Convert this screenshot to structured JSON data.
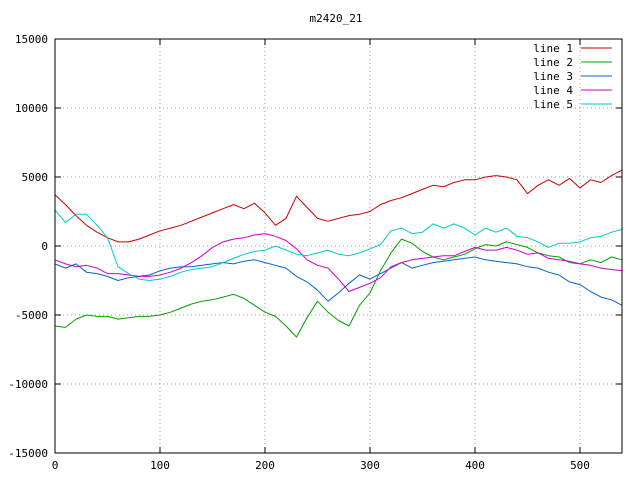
{
  "chart_data": {
    "type": "line",
    "title": "m2420_21",
    "xlabel": "",
    "ylabel": "",
    "xlim": [
      0,
      540
    ],
    "ylim": [
      -15000,
      15000
    ],
    "x_ticks": [
      0,
      100,
      200,
      300,
      400,
      500
    ],
    "y_ticks": [
      -15000,
      -10000,
      -5000,
      0,
      5000,
      10000,
      15000
    ],
    "grid": true,
    "legend_position": "top-right",
    "x": [
      0,
      10,
      20,
      30,
      40,
      50,
      60,
      70,
      80,
      90,
      100,
      110,
      120,
      130,
      140,
      150,
      160,
      170,
      180,
      190,
      200,
      210,
      220,
      230,
      240,
      250,
      260,
      270,
      280,
      290,
      300,
      310,
      320,
      330,
      340,
      350,
      360,
      370,
      380,
      390,
      400,
      410,
      420,
      430,
      440,
      450,
      460,
      470,
      480,
      490,
      500,
      510,
      520,
      530,
      540
    ],
    "series": [
      {
        "name": "line 1",
        "color": "#cc0000",
        "values": [
          3700,
          3000,
          2200,
          1500,
          1000,
          600,
          300,
          300,
          500,
          800,
          1100,
          1300,
          1500,
          1800,
          2100,
          2400,
          2700,
          3000,
          2700,
          3100,
          2400,
          1500,
          2000,
          3600,
          2800,
          2000,
          1800,
          2000,
          2200,
          2300,
          2500,
          3000,
          3300,
          3500,
          3800,
          4100,
          4400,
          4300,
          4600,
          4800,
          4800,
          5000,
          5100,
          5000,
          4800,
          3800,
          4400,
          4800,
          4400,
          4900,
          4200,
          4800,
          4600,
          5100,
          5500
        ]
      },
      {
        "name": "line 2",
        "color": "#00a000",
        "values": [
          -5800,
          -5900,
          -5300,
          -5000,
          -5100,
          -5100,
          -5300,
          -5200,
          -5100,
          -5100,
          -5000,
          -4800,
          -4500,
          -4200,
          -4000,
          -3900,
          -3700,
          -3500,
          -3800,
          -4300,
          -4800,
          -5100,
          -5800,
          -6600,
          -5200,
          -4000,
          -4800,
          -5400,
          -5800,
          -4300,
          -3400,
          -1800,
          -500,
          500,
          200,
          -400,
          -800,
          -1000,
          -800,
          -600,
          -200,
          100,
          0,
          300,
          100,
          -100,
          -500,
          -700,
          -800,
          -1200,
          -1300,
          -1000,
          -1200,
          -800,
          -1000
        ]
      },
      {
        "name": "line 3",
        "color": "#0066cc",
        "values": [
          -1300,
          -1600,
          -1300,
          -1900,
          -2000,
          -2200,
          -2500,
          -2300,
          -2200,
          -2100,
          -1800,
          -1600,
          -1500,
          -1500,
          -1400,
          -1300,
          -1200,
          -1300,
          -1100,
          -1000,
          -1200,
          -1400,
          -1600,
          -2200,
          -2600,
          -3200,
          -4000,
          -3400,
          -2700,
          -2100,
          -2400,
          -2000,
          -1600,
          -1200,
          -1600,
          -1400,
          -1200,
          -1100,
          -1000,
          -900,
          -800,
          -1000,
          -1100,
          -1200,
          -1300,
          -1500,
          -1600,
          -1900,
          -2100,
          -2600,
          -2800,
          -3300,
          -3700,
          -3900,
          -4300
        ]
      },
      {
        "name": "line 4",
        "color": "#cc00cc",
        "values": [
          -1000,
          -1300,
          -1500,
          -1400,
          -1600,
          -2000,
          -2000,
          -2100,
          -2200,
          -2200,
          -2100,
          -1900,
          -1600,
          -1200,
          -700,
          -100,
          300,
          500,
          600,
          800,
          900,
          700,
          400,
          -200,
          -1000,
          -1400,
          -1600,
          -2400,
          -3300,
          -3000,
          -2700,
          -2300,
          -1500,
          -1200,
          -1000,
          -900,
          -800,
          -700,
          -700,
          -400,
          -100,
          -300,
          -300,
          -100,
          -300,
          -600,
          -500,
          -900,
          -1000,
          -1100,
          -1300,
          -1400,
          -1600,
          -1700,
          -1800
        ]
      },
      {
        "name": "line 5",
        "color": "#00cccc",
        "values": [
          2600,
          1700,
          2300,
          2300,
          1500,
          600,
          -1500,
          -2000,
          -2400,
          -2500,
          -2400,
          -2200,
          -1900,
          -1700,
          -1600,
          -1500,
          -1200,
          -900,
          -600,
          -400,
          -300,
          0,
          -300,
          -600,
          -700,
          -500,
          -300,
          -600,
          -700,
          -500,
          -200,
          100,
          1100,
          1300,
          900,
          1000,
          1600,
          1300,
          1600,
          1300,
          800,
          1300,
          1000,
          1300,
          700,
          600,
          300,
          -100,
          200,
          200,
          300,
          600,
          700,
          1000,
          1200
        ]
      }
    ]
  }
}
